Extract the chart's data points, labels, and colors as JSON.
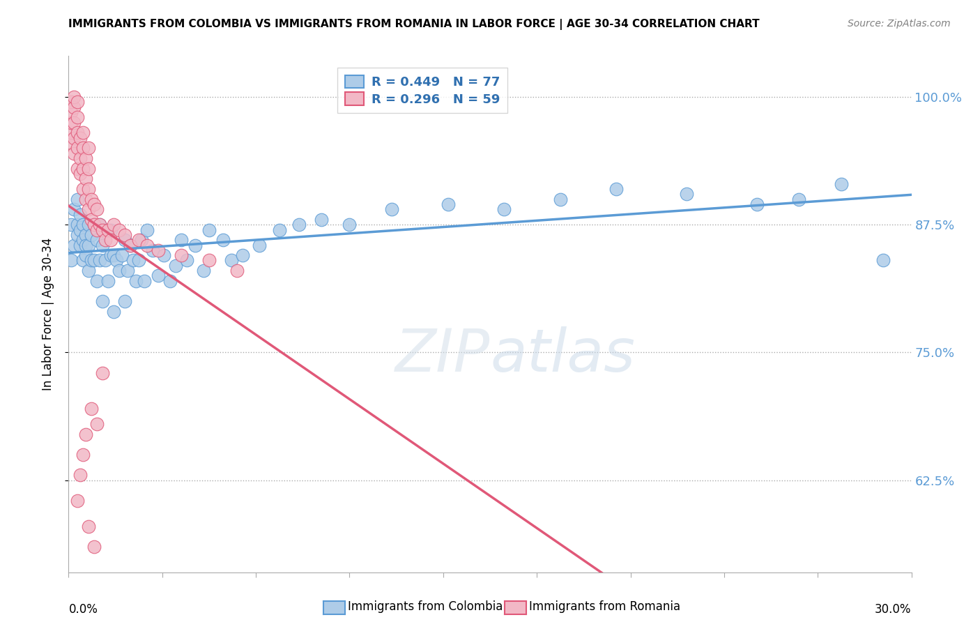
{
  "title": "IMMIGRANTS FROM COLOMBIA VS IMMIGRANTS FROM ROMANIA IN LABOR FORCE | AGE 30-34 CORRELATION CHART",
  "source": "Source: ZipAtlas.com",
  "ylabel": "In Labor Force | Age 30-34",
  "ytick_values": [
    1.0,
    0.875,
    0.75,
    0.625
  ],
  "xlim": [
    0.0,
    0.3
  ],
  "ylim": [
    0.535,
    1.04
  ],
  "colombia_R": 0.449,
  "colombia_N": 77,
  "romania_R": 0.296,
  "romania_N": 59,
  "colombia_color": "#aecce8",
  "romania_color": "#f2b8c6",
  "colombia_line_color": "#5b9bd5",
  "romania_line_color": "#e05878",
  "legend_label_colombia": "Immigrants from Colombia",
  "legend_label_romania": "Immigrants from Romania",
  "colombia_scatter_x": [
    0.001,
    0.001,
    0.002,
    0.002,
    0.003,
    0.003,
    0.003,
    0.004,
    0.004,
    0.004,
    0.005,
    0.005,
    0.005,
    0.006,
    0.006,
    0.006,
    0.007,
    0.007,
    0.007,
    0.008,
    0.008,
    0.009,
    0.009,
    0.01,
    0.01,
    0.011,
    0.011,
    0.012,
    0.012,
    0.013,
    0.013,
    0.014,
    0.015,
    0.015,
    0.016,
    0.016,
    0.017,
    0.018,
    0.019,
    0.02,
    0.02,
    0.021,
    0.022,
    0.023,
    0.024,
    0.025,
    0.026,
    0.027,
    0.028,
    0.03,
    0.032,
    0.034,
    0.036,
    0.038,
    0.04,
    0.042,
    0.045,
    0.048,
    0.05,
    0.055,
    0.058,
    0.062,
    0.068,
    0.075,
    0.082,
    0.09,
    0.1,
    0.115,
    0.135,
    0.155,
    0.175,
    0.195,
    0.22,
    0.245,
    0.26,
    0.275,
    0.29
  ],
  "colombia_scatter_y": [
    0.875,
    0.84,
    0.89,
    0.855,
    0.875,
    0.9,
    0.865,
    0.87,
    0.855,
    0.885,
    0.84,
    0.86,
    0.875,
    0.845,
    0.865,
    0.855,
    0.83,
    0.855,
    0.875,
    0.84,
    0.865,
    0.84,
    0.875,
    0.82,
    0.86,
    0.84,
    0.875,
    0.8,
    0.855,
    0.84,
    0.87,
    0.82,
    0.845,
    0.87,
    0.79,
    0.845,
    0.84,
    0.83,
    0.845,
    0.8,
    0.86,
    0.83,
    0.855,
    0.84,
    0.82,
    0.84,
    0.86,
    0.82,
    0.87,
    0.85,
    0.825,
    0.845,
    0.82,
    0.835,
    0.86,
    0.84,
    0.855,
    0.83,
    0.87,
    0.86,
    0.84,
    0.845,
    0.855,
    0.87,
    0.875,
    0.88,
    0.875,
    0.89,
    0.895,
    0.89,
    0.9,
    0.91,
    0.905,
    0.895,
    0.9,
    0.915,
    0.84
  ],
  "romania_scatter_x": [
    0.001,
    0.001,
    0.001,
    0.001,
    0.001,
    0.002,
    0.002,
    0.002,
    0.002,
    0.002,
    0.003,
    0.003,
    0.003,
    0.003,
    0.003,
    0.004,
    0.004,
    0.004,
    0.005,
    0.005,
    0.005,
    0.005,
    0.006,
    0.006,
    0.006,
    0.007,
    0.007,
    0.007,
    0.007,
    0.008,
    0.008,
    0.009,
    0.009,
    0.01,
    0.01,
    0.011,
    0.012,
    0.013,
    0.014,
    0.015,
    0.016,
    0.018,
    0.02,
    0.022,
    0.025,
    0.028,
    0.032,
    0.04,
    0.05,
    0.06,
    0.012,
    0.008,
    0.01,
    0.006,
    0.005,
    0.004,
    0.003,
    0.007,
    0.009
  ],
  "romania_scatter_y": [
    0.955,
    0.965,
    0.975,
    0.985,
    0.995,
    0.945,
    0.96,
    0.975,
    0.99,
    1.0,
    0.93,
    0.95,
    0.965,
    0.98,
    0.995,
    0.925,
    0.94,
    0.96,
    0.91,
    0.93,
    0.95,
    0.965,
    0.9,
    0.92,
    0.94,
    0.89,
    0.91,
    0.93,
    0.95,
    0.88,
    0.9,
    0.875,
    0.895,
    0.87,
    0.89,
    0.875,
    0.87,
    0.86,
    0.87,
    0.86,
    0.875,
    0.87,
    0.865,
    0.855,
    0.86,
    0.855,
    0.85,
    0.845,
    0.84,
    0.83,
    0.73,
    0.695,
    0.68,
    0.67,
    0.65,
    0.63,
    0.605,
    0.58,
    0.56
  ]
}
